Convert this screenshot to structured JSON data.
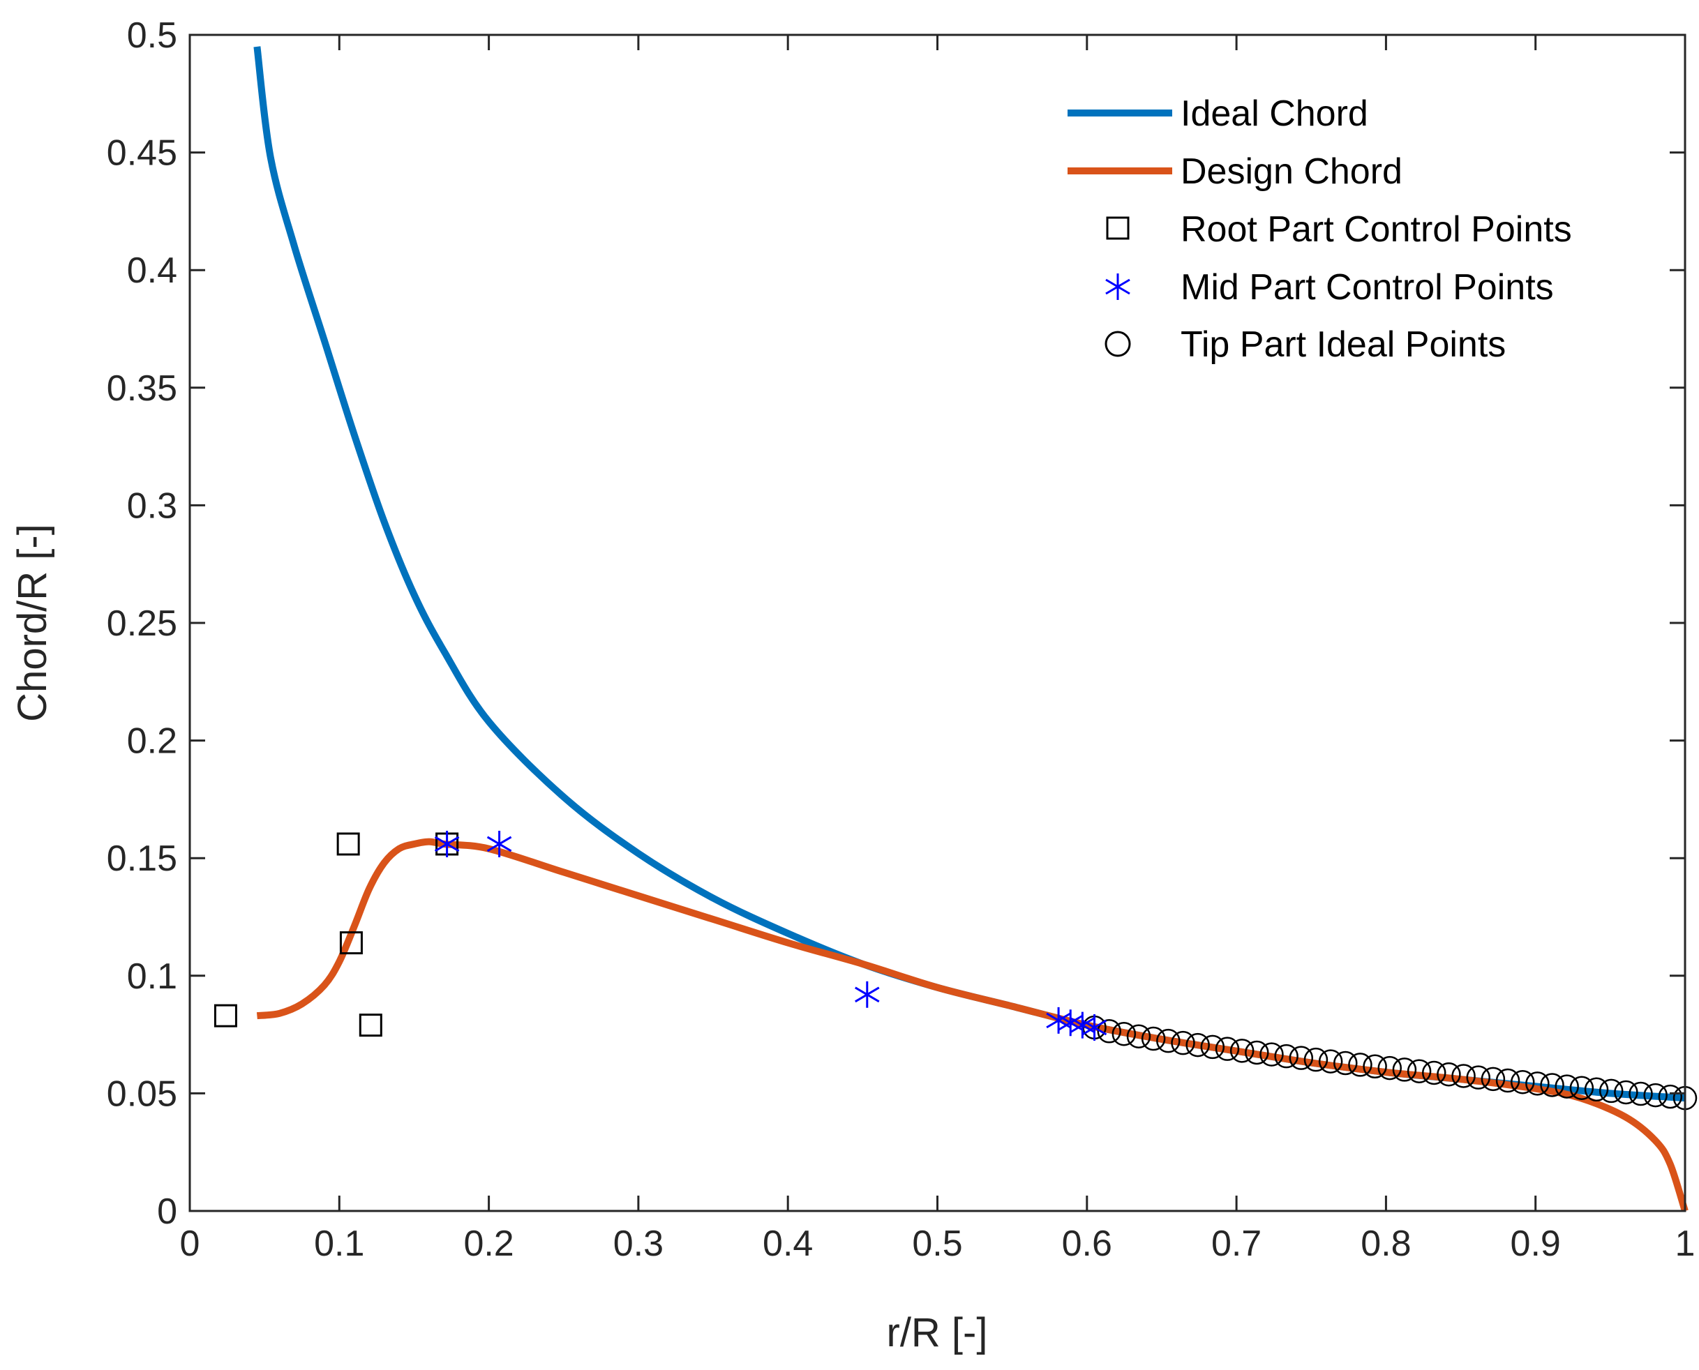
{
  "chart_data": {
    "type": "line",
    "title": "",
    "xlabel": "r/R [-]",
    "ylabel": "Chord/R [-]",
    "xlim": [
      0,
      1
    ],
    "ylim": [
      0,
      0.5
    ],
    "xticks": [
      0,
      0.1,
      0.2,
      0.3,
      0.4,
      0.5,
      0.6,
      0.7,
      0.8,
      0.9,
      1
    ],
    "xtick_labels": [
      "0",
      "0.1",
      "0.2",
      "0.3",
      "0.4",
      "0.5",
      "0.6",
      "0.7",
      "0.8",
      "0.9",
      "1"
    ],
    "yticks": [
      0,
      0.05,
      0.1,
      0.15,
      0.2,
      0.25,
      0.3,
      0.35,
      0.4,
      0.45,
      0.5
    ],
    "ytick_labels": [
      "0",
      "0.05",
      "0.1",
      "0.15",
      "0.2",
      "0.25",
      "0.3",
      "0.35",
      "0.4",
      "0.45",
      "0.5"
    ],
    "grid": false,
    "legend_position": "top-right",
    "series": [
      {
        "name": "Ideal Chord",
        "style": "line",
        "color": "#0072BD",
        "x": [
          0.045,
          0.054,
          0.07,
          0.09,
          0.11,
          0.13,
          0.15,
          0.17,
          0.2,
          0.25,
          0.3,
          0.35,
          0.4,
          0.45,
          0.5,
          0.55,
          0.6,
          0.65,
          0.7,
          0.75,
          0.8,
          0.85,
          0.9,
          0.95,
          1.0
        ],
        "y": [
          0.495,
          0.448,
          0.41,
          0.37,
          0.33,
          0.293,
          0.262,
          0.238,
          0.208,
          0.176,
          0.152,
          0.133,
          0.118,
          0.105,
          0.095,
          0.087,
          0.079,
          0.073,
          0.068,
          0.063,
          0.059,
          0.056,
          0.053,
          0.05,
          0.048
        ]
      },
      {
        "name": "Design Chord",
        "style": "line",
        "color": "#D95319",
        "x": [
          0.045,
          0.06,
          0.075,
          0.09,
          0.1,
          0.11,
          0.12,
          0.13,
          0.14,
          0.15,
          0.16,
          0.17,
          0.2,
          0.25,
          0.3,
          0.35,
          0.4,
          0.45,
          0.5,
          0.55,
          0.6,
          0.65,
          0.7,
          0.75,
          0.8,
          0.85,
          0.9,
          0.93,
          0.96,
          0.98,
          0.99,
          1.0
        ],
        "y": [
          0.083,
          0.084,
          0.088,
          0.096,
          0.106,
          0.121,
          0.137,
          0.148,
          0.154,
          0.156,
          0.157,
          0.156,
          0.154,
          0.144,
          0.134,
          0.124,
          0.114,
          0.105,
          0.095,
          0.087,
          0.079,
          0.073,
          0.068,
          0.063,
          0.059,
          0.056,
          0.052,
          0.048,
          0.04,
          0.03,
          0.02,
          0.0
        ]
      },
      {
        "name": "Root Part Control Points",
        "style": "marker",
        "marker": "square",
        "color": "#000000",
        "x": [
          0.024,
          0.106,
          0.108,
          0.121,
          0.172
        ],
        "y": [
          0.083,
          0.156,
          0.114,
          0.079,
          0.156
        ]
      },
      {
        "name": "Mid Part Control Points",
        "style": "marker",
        "marker": "asterisk",
        "color": "#0000FF",
        "x": [
          0.172,
          0.207,
          0.453,
          0.581,
          0.589,
          0.597,
          0.605
        ],
        "y": [
          0.156,
          0.156,
          0.092,
          0.081,
          0.08,
          0.079,
          0.078
        ]
      },
      {
        "name": "Tip Part Ideal Points",
        "style": "marker",
        "marker": "circle",
        "color": "#000000",
        "x_start": 0.605,
        "x_end": 1.0,
        "count": 41,
        "y_start": 0.078,
        "y_end": 0.048
      }
    ]
  }
}
